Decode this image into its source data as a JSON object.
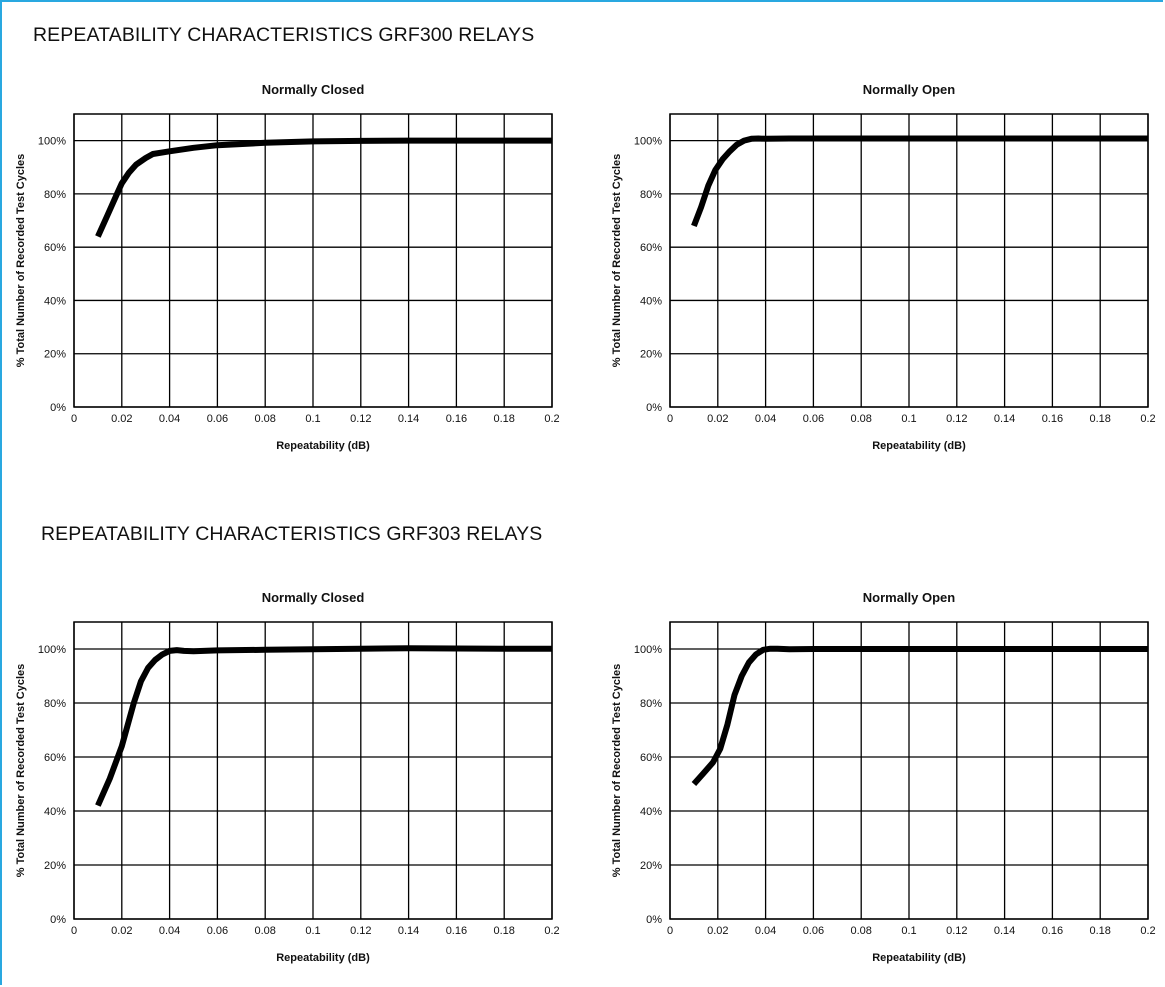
{
  "sections": [
    {
      "title": "REPEATABILITY CHARACTERISTICS GRF300 RELAYS"
    },
    {
      "title": "REPEATABILITY CHARACTERISTICS GRF303 RELAYS"
    }
  ],
  "colors": {
    "frame_accent": "#29a8e0",
    "line": "#000000",
    "grid": "#000000"
  },
  "chart_data": [
    {
      "type": "line",
      "title": "Normally Closed",
      "xlabel": "Repeatability (dB)",
      "ylabel": "% Total Number of Recorded Test Cycles",
      "xlim": [
        0,
        0.2
      ],
      "ylim": [
        0,
        110
      ],
      "xticks": [
        0,
        0.02,
        0.04,
        0.06,
        0.08,
        0.1,
        0.12,
        0.14,
        0.16,
        0.18,
        0.2
      ],
      "xtick_labels": [
        "0",
        "0.02",
        "0.04",
        "0.06",
        "0.08",
        "0.1",
        "0.12",
        "0.14",
        "0.16",
        "0.18",
        "0.2"
      ],
      "yticks": [
        0,
        20,
        40,
        60,
        80,
        100
      ],
      "ytick_labels": [
        "0%",
        "20%",
        "40%",
        "60%",
        "80%",
        "100%"
      ],
      "grid": true,
      "x": [
        0.01,
        0.014,
        0.018,
        0.02,
        0.023,
        0.026,
        0.03,
        0.033,
        0.04,
        0.05,
        0.06,
        0.08,
        0.1,
        0.12,
        0.14,
        0.16,
        0.18,
        0.2
      ],
      "y": [
        64,
        72,
        80,
        84,
        88,
        91,
        93.5,
        95,
        96,
        97.3,
        98.3,
        99.2,
        99.7,
        99.9,
        100,
        100,
        100,
        100
      ]
    },
    {
      "type": "line",
      "title": "Normally Open",
      "xlabel": "Repeatability (dB)",
      "ylabel": "% Total Number of Recorded Test Cycles",
      "xlim": [
        0,
        0.2
      ],
      "ylim": [
        0,
        110
      ],
      "xticks": [
        0,
        0.02,
        0.04,
        0.06,
        0.08,
        0.1,
        0.12,
        0.14,
        0.16,
        0.18,
        0.2
      ],
      "xtick_labels": [
        "0",
        "0.02",
        "0.04",
        "0.06",
        "0.08",
        "0.1",
        "0.12",
        "0.14",
        "0.16",
        "0.18",
        "0.2"
      ],
      "yticks": [
        0,
        20,
        40,
        60,
        80,
        100
      ],
      "ytick_labels": [
        "0%",
        "20%",
        "40%",
        "60%",
        "80%",
        "100%"
      ],
      "grid": true,
      "x": [
        0.01,
        0.013,
        0.016,
        0.019,
        0.022,
        0.025,
        0.028,
        0.031,
        0.034,
        0.037,
        0.04,
        0.05,
        0.06,
        0.08,
        0.1,
        0.12,
        0.14,
        0.16,
        0.18,
        0.2
      ],
      "y": [
        68,
        75,
        83,
        89,
        93,
        96,
        98.5,
        100,
        100.7,
        100.8,
        100.7,
        100.8,
        100.8,
        100.8,
        100.8,
        100.8,
        100.8,
        100.8,
        100.8,
        100.8
      ]
    },
    {
      "type": "line",
      "title": "Normally Closed",
      "xlabel": "Repeatability (dB)",
      "ylabel": "% Total Number of Recorded Test Cycles",
      "xlim": [
        0,
        0.2
      ],
      "ylim": [
        0,
        110
      ],
      "xticks": [
        0,
        0.02,
        0.04,
        0.06,
        0.08,
        0.1,
        0.12,
        0.14,
        0.16,
        0.18,
        0.2
      ],
      "xtick_labels": [
        "0",
        "0.02",
        "0.04",
        "0.06",
        "0.08",
        "0.1",
        "0.12",
        "0.14",
        "0.16",
        "0.18",
        "0.2"
      ],
      "yticks": [
        0,
        20,
        40,
        60,
        80,
        100
      ],
      "ytick_labels": [
        "0%",
        "20%",
        "40%",
        "60%",
        "80%",
        "100%"
      ],
      "grid": true,
      "x": [
        0.01,
        0.015,
        0.02,
        0.025,
        0.028,
        0.031,
        0.034,
        0.037,
        0.04,
        0.043,
        0.046,
        0.05,
        0.06,
        0.08,
        0.1,
        0.12,
        0.14,
        0.16,
        0.18,
        0.2
      ],
      "y": [
        42,
        52,
        64,
        80,
        88,
        93,
        96,
        98,
        99.3,
        99.6,
        99.3,
        99.2,
        99.5,
        99.7,
        99.9,
        100.1,
        100.3,
        100.2,
        100.1,
        100.1
      ]
    },
    {
      "type": "line",
      "title": "Normally Open",
      "xlabel": "Repeatability (dB)",
      "ylabel": "% Total Number of Recorded Test Cycles",
      "xlim": [
        0,
        0.2
      ],
      "ylim": [
        0,
        110
      ],
      "xticks": [
        0,
        0.02,
        0.04,
        0.06,
        0.08,
        0.1,
        0.12,
        0.14,
        0.16,
        0.18,
        0.2
      ],
      "xtick_labels": [
        "0",
        "0.02",
        "0.04",
        "0.06",
        "0.08",
        "0.1",
        "0.12",
        "0.14",
        "0.16",
        "0.18",
        "0.2"
      ],
      "yticks": [
        0,
        20,
        40,
        60,
        80,
        100
      ],
      "ytick_labels": [
        "0%",
        "20%",
        "40%",
        "60%",
        "80%",
        "100%"
      ],
      "grid": true,
      "x": [
        0.01,
        0.014,
        0.018,
        0.021,
        0.024,
        0.027,
        0.03,
        0.033,
        0.036,
        0.039,
        0.042,
        0.045,
        0.05,
        0.06,
        0.08,
        0.1,
        0.12,
        0.14,
        0.16,
        0.18,
        0.2
      ],
      "y": [
        50,
        54,
        58,
        63,
        72,
        83,
        90,
        95,
        98,
        99.7,
        100.1,
        100.1,
        99.9,
        100,
        100,
        100,
        100,
        100,
        100,
        100,
        100
      ]
    }
  ]
}
